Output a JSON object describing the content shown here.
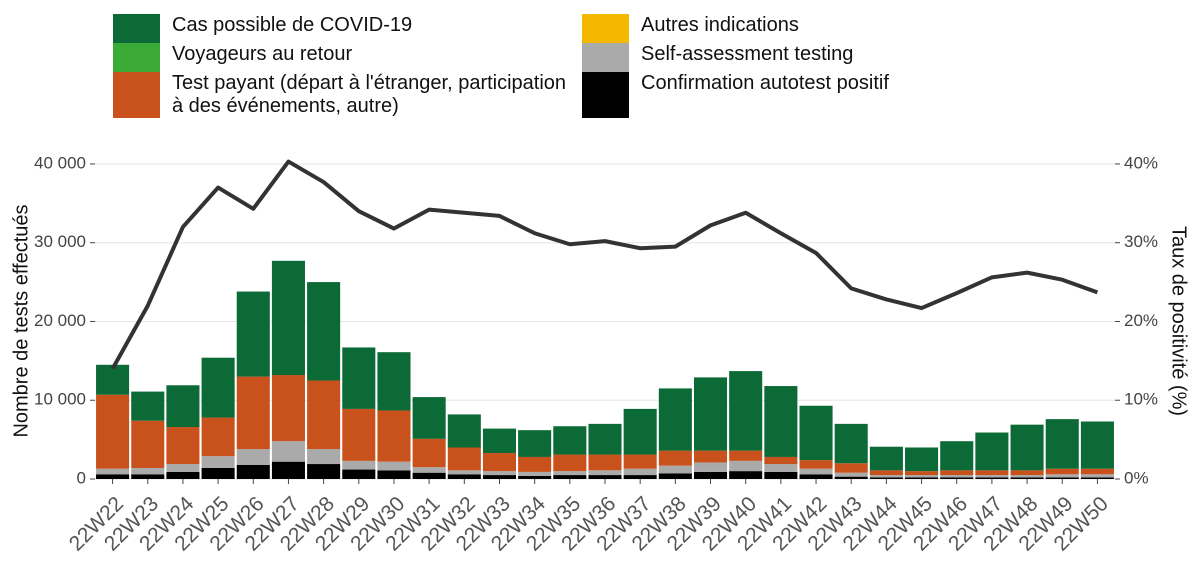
{
  "chart_data": {
    "type": "bar",
    "y_label": "Nombre de tests effectués",
    "y2_label": "Taux de positivité (%)",
    "categories": [
      "22W22",
      "22W23",
      "22W24",
      "22W25",
      "22W26",
      "22W27",
      "22W28",
      "22W29",
      "22W30",
      "22W31",
      "22W32",
      "22W33",
      "22W34",
      "22W35",
      "22W36",
      "22W37",
      "22W38",
      "22W39",
      "22W40",
      "22W41",
      "22W42",
      "22W43",
      "22W44",
      "22W45",
      "22W46",
      "22W47",
      "22W48",
      "22W49",
      "22W50"
    ],
    "ylim": [
      0,
      40500
    ],
    "yticks": [
      {
        "value": 0,
        "label": "0"
      },
      {
        "value": 10000,
        "label": "10 000"
      },
      {
        "value": 20000,
        "label": "20 000"
      },
      {
        "value": 30000,
        "label": "30 000"
      },
      {
        "value": 40000,
        "label": "40 000"
      }
    ],
    "y2lim": [
      0,
      40.5
    ],
    "y2ticks": [
      {
        "value": 0,
        "label": "0%"
      },
      {
        "value": 10,
        "label": "10%"
      },
      {
        "value": 20,
        "label": "20%"
      },
      {
        "value": 30,
        "label": "30%"
      },
      {
        "value": 40,
        "label": "40%"
      }
    ],
    "grid": true,
    "series": [
      {
        "name": "Cas possible de COVID-19",
        "color": "#0b6a35",
        "values": [
          3800,
          3700,
          5300,
          7600,
          10800,
          14500,
          12500,
          7800,
          7400,
          5300,
          4200,
          3100,
          3400,
          3600,
          3900,
          5800,
          7900,
          9300,
          10100,
          9000,
          6900,
          5000,
          3000,
          3000,
          3700,
          4800,
          5800,
          6300,
          6000
        ]
      },
      {
        "name": "Voyageurs au retour",
        "color": "#3aa935",
        "values": [
          0,
          0,
          0,
          0,
          0,
          0,
          0,
          0,
          0,
          0,
          0,
          0,
          0,
          0,
          0,
          0,
          0,
          0,
          0,
          0,
          0,
          0,
          0,
          0,
          0,
          0,
          0,
          0,
          0
        ]
      },
      {
        "name": "Test payant (départ à l'étranger, participation à des événements, autre)",
        "color": "#c9521c",
        "values": [
          9400,
          6000,
          4700,
          4900,
          9200,
          8400,
          8700,
          6600,
          6500,
          3600,
          2900,
          2300,
          1900,
          2100,
          2000,
          1800,
          1900,
          1500,
          1300,
          900,
          1100,
          1200,
          600,
          500,
          600,
          600,
          600,
          700,
          700
        ]
      },
      {
        "name": "Autres indications",
        "color": "#f5b800",
        "values": [
          0,
          0,
          0,
          0,
          0,
          0,
          0,
          0,
          0,
          0,
          0,
          0,
          0,
          0,
          0,
          0,
          0,
          0,
          0,
          0,
          0,
          0,
          0,
          0,
          0,
          0,
          0,
          0,
          0
        ]
      },
      {
        "name": "Self-assessment testing",
        "color": "#aaaaaa",
        "values": [
          700,
          800,
          1000,
          1500,
          2000,
          2600,
          1900,
          1100,
          1100,
          700,
          500,
          500,
          500,
          500,
          600,
          800,
          1000,
          1200,
          1300,
          1000,
          700,
          500,
          300,
          300,
          300,
          300,
          300,
          400,
          400
        ]
      },
      {
        "name": "Confirmation autotest positif",
        "color": "#000000",
        "values": [
          600,
          600,
          900,
          1400,
          1800,
          2200,
          1900,
          1200,
          1100,
          800,
          600,
          500,
          400,
          500,
          500,
          500,
          700,
          900,
          1000,
          900,
          600,
          300,
          200,
          200,
          200,
          200,
          200,
          200,
          200
        ]
      },
      {
        "type": "line",
        "axis": "y2",
        "color": "#333333",
        "values": [
          14,
          22,
          32,
          37,
          34.3,
          40.3,
          37.7,
          34,
          31.8,
          34.2,
          33.8,
          33.4,
          31.2,
          29.8,
          30.2,
          29.3,
          29.5,
          32.2,
          33.8,
          31.2,
          28.7,
          24.2,
          22.8,
          21.7,
          23.6,
          25.6,
          26.2,
          25.3,
          23.7
        ]
      }
    ]
  }
}
